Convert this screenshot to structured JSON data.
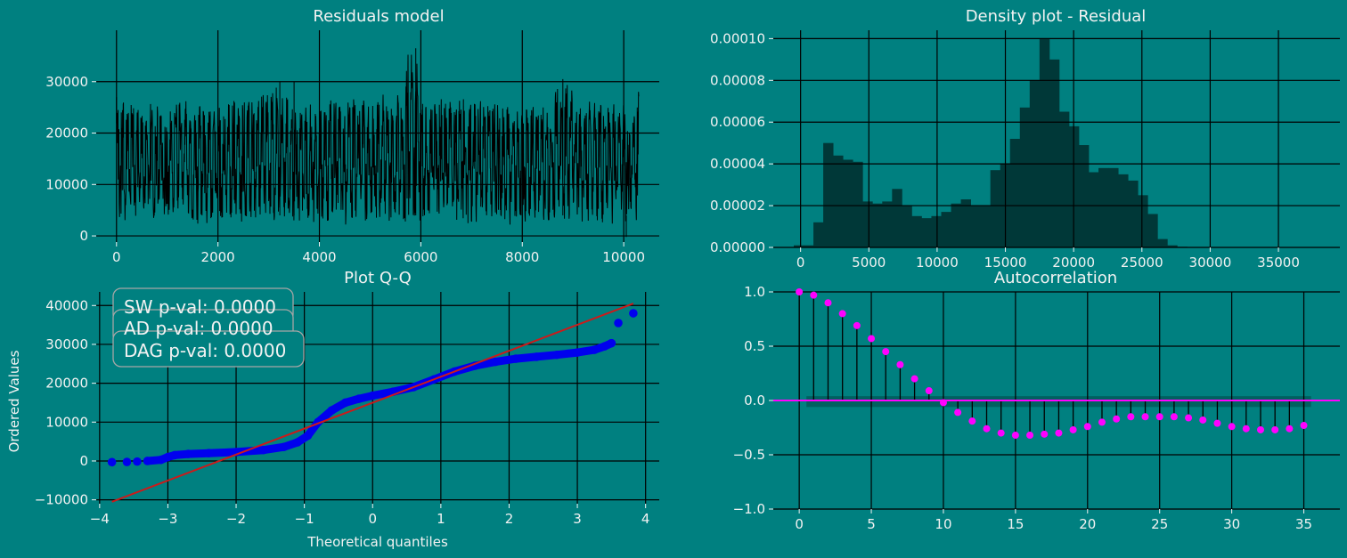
{
  "chart_data": [
    {
      "id": "residuals",
      "type": "line",
      "title": "Residuals model",
      "xlabel": "",
      "ylabel": "",
      "xlim": [
        -400,
        10700
      ],
      "ylim": [
        -1200,
        40000
      ],
      "xticks": [
        0,
        2000,
        4000,
        6000,
        8000,
        10000
      ],
      "yticks": [
        0,
        10000,
        20000,
        30000
      ],
      "grid": true,
      "line_color": "#000000",
      "series": [
        {
          "description": "dense oscillating residual series, ~10300 points",
          "approx_points": [
            [
              0,
              27000
            ],
            [
              30,
              15000
            ],
            [
              60,
              2500
            ],
            [
              120,
              28500
            ],
            [
              160,
              3000
            ],
            [
              260,
              26000
            ],
            [
              330,
              2500
            ],
            [
              500,
              26000
            ],
            [
              600,
              3000
            ],
            [
              900,
              26000
            ],
            [
              1000,
              2000
            ],
            [
              1300,
              27000
            ],
            [
              1500,
              3000
            ],
            [
              1900,
              26000
            ],
            [
              2100,
              3000
            ],
            [
              2500,
              27000
            ],
            [
              2800,
              2500
            ],
            [
              3200,
              29500
            ],
            [
              3400,
              3000
            ],
            [
              3800,
              26000
            ],
            [
              4100,
              3000
            ],
            [
              4500,
              27000
            ],
            [
              4800,
              3000
            ],
            [
              5400,
              28000
            ],
            [
              5700,
              3000
            ],
            [
              5900,
              36500
            ],
            [
              6000,
              3000
            ],
            [
              6500,
              27000
            ],
            [
              6900,
              3000
            ],
            [
              7400,
              27000
            ],
            [
              7800,
              3000
            ],
            [
              8300,
              26000
            ],
            [
              8600,
              2500
            ],
            [
              8800,
              30500
            ],
            [
              9000,
              3000
            ],
            [
              9400,
              26500
            ],
            [
              9700,
              2500
            ],
            [
              10000,
              26000
            ],
            [
              10050,
              -200
            ],
            [
              10150,
              2000
            ],
            [
              10300,
              28500
            ]
          ]
        }
      ]
    },
    {
      "id": "density",
      "type": "bar",
      "title": "Density plot - Residual",
      "xlabel": "",
      "ylabel": "",
      "xlim": [
        -2000,
        39500
      ],
      "ylim": [
        0,
        0.000104
      ],
      "xticks": [
        0,
        5000,
        10000,
        15000,
        20000,
        25000,
        30000,
        35000
      ],
      "yticks": [
        "0.00000",
        "0.00002",
        "0.00004",
        "0.00006",
        "0.00008",
        "0.00010"
      ],
      "ytick_values": [
        0,
        2e-05,
        4e-05,
        6e-05,
        8e-05,
        0.0001
      ],
      "grid": true,
      "bar_color": "#003838",
      "bin_start": -500,
      "bin_width": 720,
      "values": [
        1e-06,
        1e-06,
        1.2e-05,
        5e-05,
        4.4e-05,
        4.2e-05,
        4.1e-05,
        2.2e-05,
        2.1e-05,
        2.2e-05,
        2.8e-05,
        2e-05,
        1.5e-05,
        1.4e-05,
        1.5e-05,
        1.7e-05,
        2.1e-05,
        2.3e-05,
        2e-05,
        2e-05,
        3.7e-05,
        4e-05,
        5.2e-05,
        6.7e-05,
        8e-05,
        0.0001,
        9e-05,
        6.5e-05,
        5.8e-05,
        4.9e-05,
        3.6e-05,
        3.8e-05,
        3.8e-05,
        3.5e-05,
        3.2e-05,
        2.5e-05,
        1.6e-05,
        4e-06,
        1e-06,
        3e-07,
        0,
        0,
        0,
        0,
        0,
        0,
        0,
        0,
        0,
        0,
        0,
        2e-07
      ]
    },
    {
      "id": "qq",
      "type": "scatter",
      "title": "Plot Q-Q",
      "xlabel": "Theoretical quantiles",
      "ylabel": "Ordered Values",
      "xlim": [
        -4.05,
        4.2
      ],
      "ylim": [
        -11000,
        43500
      ],
      "xticks": [
        -4,
        -3,
        -2,
        -1,
        0,
        1,
        2,
        3,
        4
      ],
      "yticks": [
        -10000,
        0,
        10000,
        20000,
        30000,
        40000
      ],
      "ytick_labels": [
        "−10000",
        "0",
        "10000",
        "20000",
        "30000",
        "40000"
      ],
      "xtick_labels": [
        "−4",
        "−3",
        "−2",
        "−1",
        "0",
        "1",
        "2",
        "3",
        "4"
      ],
      "grid": true,
      "point_color": "#0000ee",
      "fit_line_color": "#cc1a1a",
      "fit_line": [
        [
          -3.82,
          -10500
        ],
        [
          3.82,
          40500
        ]
      ],
      "points": [
        [
          -3.82,
          -300
        ],
        [
          -3.6,
          -250
        ],
        [
          -3.45,
          -150
        ],
        [
          -3.3,
          0
        ],
        [
          -3.1,
          300
        ],
        [
          -3.0,
          1000
        ],
        [
          -2.9,
          1500
        ],
        [
          -2.7,
          1800
        ],
        [
          -2.4,
          2000
        ],
        [
          -2.0,
          2300
        ],
        [
          -1.6,
          2800
        ],
        [
          -1.3,
          3600
        ],
        [
          -1.1,
          4800
        ],
        [
          -0.95,
          6500
        ],
        [
          -0.8,
          10000
        ],
        [
          -0.6,
          13000
        ],
        [
          -0.4,
          15000
        ],
        [
          -0.2,
          16000
        ],
        [
          0,
          16800
        ],
        [
          0.3,
          17800
        ],
        [
          0.6,
          19000
        ],
        [
          0.9,
          21000
        ],
        [
          1.2,
          23000
        ],
        [
          1.5,
          24500
        ],
        [
          1.8,
          25500
        ],
        [
          2.1,
          26300
        ],
        [
          2.4,
          26800
        ],
        [
          2.7,
          27300
        ],
        [
          3.0,
          27900
        ],
        [
          3.25,
          28600
        ],
        [
          3.4,
          29500
        ],
        [
          3.5,
          30300
        ],
        [
          3.6,
          35500
        ],
        [
          3.82,
          38000
        ]
      ],
      "stats": [
        "SW p-val: 0.0000",
        "AD p-val: 0.0000",
        "DAG p-val: 0.0000"
      ]
    },
    {
      "id": "acf",
      "type": "scatter",
      "title": "Autocorrelation",
      "xlabel": "",
      "ylabel": "",
      "xlim": [
        -1.8,
        37.5
      ],
      "ylim": [
        -1.0,
        1.0
      ],
      "xticks": [
        0,
        5,
        10,
        15,
        20,
        25,
        30,
        35
      ],
      "yticks": [
        -1.0,
        -0.5,
        0.0,
        0.5,
        1.0
      ],
      "ytick_labels": [
        "−1.0",
        "−0.5",
        "0.0",
        "0.5",
        "1.0"
      ],
      "grid": true,
      "marker_color": "#ff00ff",
      "zero_line_color": "#ff00ff",
      "conf_band": 0.04,
      "lags": [
        0,
        1,
        2,
        3,
        4,
        5,
        6,
        7,
        8,
        9,
        10,
        11,
        12,
        13,
        14,
        15,
        16,
        17,
        18,
        19,
        20,
        21,
        22,
        23,
        24,
        25,
        26,
        27,
        28,
        29,
        30,
        31,
        32,
        33,
        34,
        35
      ],
      "values": [
        1.0,
        0.97,
        0.9,
        0.8,
        0.69,
        0.57,
        0.45,
        0.33,
        0.2,
        0.09,
        -0.02,
        -0.11,
        -0.19,
        -0.26,
        -0.3,
        -0.32,
        -0.32,
        -0.31,
        -0.3,
        -0.27,
        -0.24,
        -0.2,
        -0.17,
        -0.15,
        -0.15,
        -0.15,
        -0.15,
        -0.16,
        -0.18,
        -0.21,
        -0.24,
        -0.26,
        -0.27,
        -0.27,
        -0.26,
        -0.23
      ]
    }
  ]
}
